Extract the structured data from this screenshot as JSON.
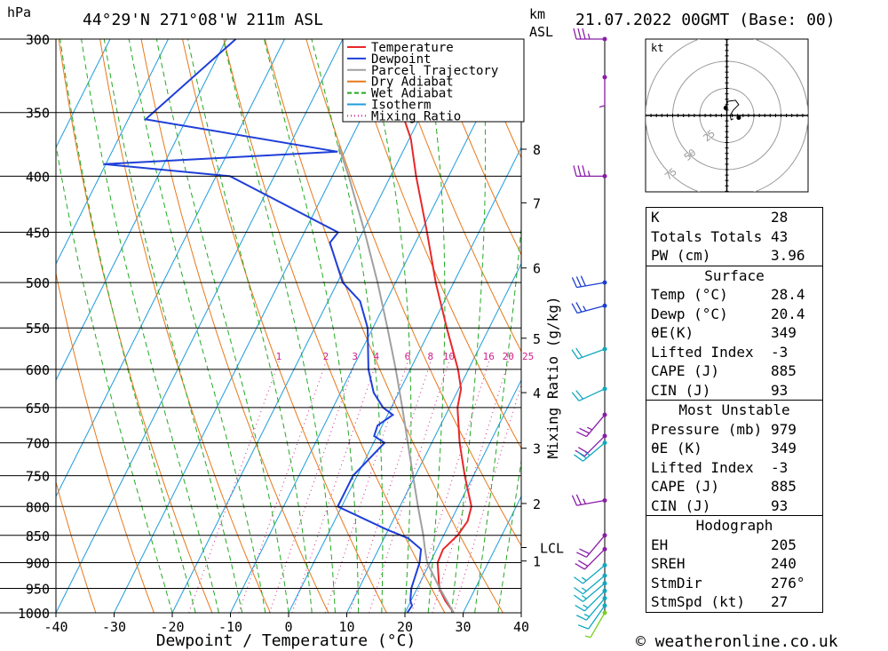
{
  "header": {
    "units_hpa": "hPa",
    "location": "44°29'N 271°08'W 211m ASL",
    "units_km": "km",
    "units_asl": "ASL",
    "datetime": "21.07.2022 00GMT (Base: 00)"
  },
  "footer": {
    "credit": "© weatheronline.co.uk"
  },
  "chart_data": {
    "type": "line",
    "subtype": "skew-T log-p",
    "xlabel": "Dewpoint / Temperature (°C)",
    "ylabel": "hPa",
    "right_label": "Mixing Ratio (g/kg)",
    "xlim": [
      -40,
      40
    ],
    "ylim": [
      1000,
      300
    ],
    "pressure_ticks": [
      300,
      350,
      400,
      450,
      500,
      550,
      600,
      650,
      700,
      750,
      800,
      850,
      900,
      950,
      1000
    ],
    "temp_ticks": [
      -40,
      -30,
      -20,
      -10,
      0,
      10,
      20,
      30,
      40
    ],
    "height_ticks": [
      {
        "label": "8",
        "p": 378
      },
      {
        "label": "7",
        "p": 423
      },
      {
        "label": "6",
        "p": 485
      },
      {
        "label": "5",
        "p": 562
      },
      {
        "label": "4",
        "p": 630
      },
      {
        "label": "3",
        "p": 708
      },
      {
        "label": "2",
        "p": 795
      },
      {
        "label": "1",
        "p": 897
      }
    ],
    "lcl": {
      "label": "LCL",
      "p": 872
    },
    "mixing_ratio_labels": [
      "1",
      "2",
      "3",
      "4",
      "6",
      "8",
      "10",
      "16",
      "20",
      "25"
    ],
    "mixing_ratio_label_p": 591,
    "legend": [
      {
        "name": "Temperature",
        "color": "#e8282a",
        "style": "solid"
      },
      {
        "name": "Dewpoint",
        "color": "#1f3fd8",
        "style": "solid"
      },
      {
        "name": "Parcel Trajectory",
        "color": "#a0a0a0",
        "style": "solid"
      },
      {
        "name": "Dry Adiabat",
        "color": "#e8781a",
        "style": "solid"
      },
      {
        "name": "Wet Adiabat",
        "color": "#22aa22",
        "style": "dashed"
      },
      {
        "name": "Isotherm",
        "color": "#1e9cdc",
        "style": "solid"
      },
      {
        "name": "Mixing Ratio",
        "color": "#d0208c",
        "style": "dotted"
      }
    ],
    "legend_position": "top-right",
    "series": [
      {
        "name": "Temperature",
        "points": [
          [
            1000,
            28.4
          ],
          [
            975,
            25.9
          ],
          [
            950,
            23.8
          ],
          [
            900,
            21.3
          ],
          [
            875,
            21.1
          ],
          [
            850,
            22.4
          ],
          [
            825,
            22.9
          ],
          [
            800,
            22.3
          ],
          [
            750,
            18.5
          ],
          [
            700,
            14.8
          ],
          [
            650,
            11.4
          ],
          [
            625,
            10.4
          ],
          [
            600,
            8.2
          ],
          [
            550,
            2.7
          ],
          [
            500,
            -3.1
          ],
          [
            450,
            -8.9
          ],
          [
            400,
            -15.6
          ],
          [
            370,
            -19.7
          ],
          [
            350,
            -23.5
          ],
          [
            300,
            -32.3
          ]
        ]
      },
      {
        "name": "Dewpoint",
        "points": [
          [
            1000,
            20.4
          ],
          [
            985,
            20.6
          ],
          [
            975,
            19.9
          ],
          [
            950,
            19.0
          ],
          [
            900,
            18.2
          ],
          [
            875,
            17.3
          ],
          [
            855,
            14.1
          ],
          [
            840,
            9.8
          ],
          [
            800,
            -0.7
          ],
          [
            750,
            -0.7
          ],
          [
            700,
            1.9
          ],
          [
            690,
            -0.5
          ],
          [
            675,
            -0.8
          ],
          [
            660,
            0.9
          ],
          [
            650,
            -1.4
          ],
          [
            630,
            -4.3
          ],
          [
            600,
            -7.2
          ],
          [
            550,
            -10.9
          ],
          [
            520,
            -14.5
          ],
          [
            500,
            -19.1
          ],
          [
            460,
            -24.7
          ],
          [
            450,
            -24.2
          ],
          [
            400,
            -47.6
          ],
          [
            390,
            -70.3
          ],
          [
            380,
            -31.2
          ],
          [
            355,
            -67.0
          ],
          [
            300,
            -58.4
          ]
        ]
      },
      {
        "name": "Parcel Trajectory",
        "points": [
          [
            1000,
            28.4
          ],
          [
            950,
            23.9
          ],
          [
            900,
            19.5
          ],
          [
            872,
            17.8
          ],
          [
            850,
            16.5
          ],
          [
            800,
            13.1
          ],
          [
            750,
            9.6
          ],
          [
            700,
            5.9
          ],
          [
            650,
            1.9
          ],
          [
            600,
            -2.5
          ],
          [
            550,
            -7.5
          ],
          [
            500,
            -13.1
          ],
          [
            450,
            -19.6
          ],
          [
            400,
            -27.2
          ],
          [
            375,
            -31.6
          ]
        ]
      }
    ]
  },
  "hodograph": {
    "unit": "kt",
    "rings": [
      "25",
      "50",
      "75"
    ],
    "path": [
      [
        -1,
        7
      ],
      [
        1,
        13
      ],
      [
        8,
        14
      ],
      [
        11,
        10
      ],
      [
        6,
        5
      ],
      [
        3,
        0
      ],
      [
        4,
        -4
      ],
      [
        6,
        -3
      ]
    ],
    "storm_motion": [
      11,
      -2
    ]
  },
  "wind_barbs": [
    {
      "p": 300,
      "dir": 270,
      "kt": 35
    },
    {
      "p": 325,
      "dir": 180,
      "kt": 5
    },
    {
      "p": 400,
      "dir": 270,
      "kt": 35
    },
    {
      "p": 500,
      "dir": 260,
      "kt": 30
    },
    {
      "p": 525,
      "dir": 255,
      "kt": 25
    },
    {
      "p": 575,
      "dir": 250,
      "kt": 20
    },
    {
      "p": 625,
      "dir": 245,
      "kt": 20
    },
    {
      "p": 660,
      "dir": 220,
      "kt": 25
    },
    {
      "p": 690,
      "dir": 225,
      "kt": 20
    },
    {
      "p": 700,
      "dir": 230,
      "kt": 25
    },
    {
      "p": 790,
      "dir": 260,
      "kt": 25
    },
    {
      "p": 850,
      "dir": 220,
      "kt": 20
    },
    {
      "p": 875,
      "dir": 225,
      "kt": 20
    },
    {
      "p": 905,
      "dir": 230,
      "kt": 15
    },
    {
      "p": 925,
      "dir": 230,
      "kt": 15
    },
    {
      "p": 940,
      "dir": 230,
      "kt": 15
    },
    {
      "p": 955,
      "dir": 225,
      "kt": 15
    },
    {
      "p": 970,
      "dir": 220,
      "kt": 15
    },
    {
      "p": 985,
      "dir": 215,
      "kt": 10
    },
    {
      "p": 1000,
      "dir": 210,
      "kt": 5
    }
  ],
  "indices": {
    "main": [
      {
        "label": "K",
        "value": "28"
      },
      {
        "label": "Totals Totals",
        "value": "43"
      },
      {
        "label": "PW (cm)",
        "value": "3.96"
      }
    ],
    "surface": {
      "title": "Surface",
      "rows": [
        {
          "label": "Temp (°C)",
          "value": "28.4"
        },
        {
          "label": "Dewp (°C)",
          "value": "20.4"
        },
        {
          "label": "θE(K)",
          "value": "349"
        },
        {
          "label": "Lifted Index",
          "value": "-3"
        },
        {
          "label": "CAPE (J)",
          "value": "885"
        },
        {
          "label": "CIN (J)",
          "value": "93"
        }
      ]
    },
    "most_unstable": {
      "title": "Most Unstable",
      "rows": [
        {
          "label": "Pressure (mb)",
          "value": "979"
        },
        {
          "label": "θE (K)",
          "value": "349"
        },
        {
          "label": "Lifted Index",
          "value": "-3"
        },
        {
          "label": "CAPE (J)",
          "value": "885"
        },
        {
          "label": "CIN (J)",
          "value": "93"
        }
      ]
    },
    "hodograph": {
      "title": "Hodograph",
      "rows": [
        {
          "label": "EH",
          "value": "205"
        },
        {
          "label": "SREH",
          "value": "240"
        },
        {
          "label": "StmDir",
          "value": "276°"
        },
        {
          "label": "StmSpd (kt)",
          "value": "27"
        }
      ]
    }
  }
}
